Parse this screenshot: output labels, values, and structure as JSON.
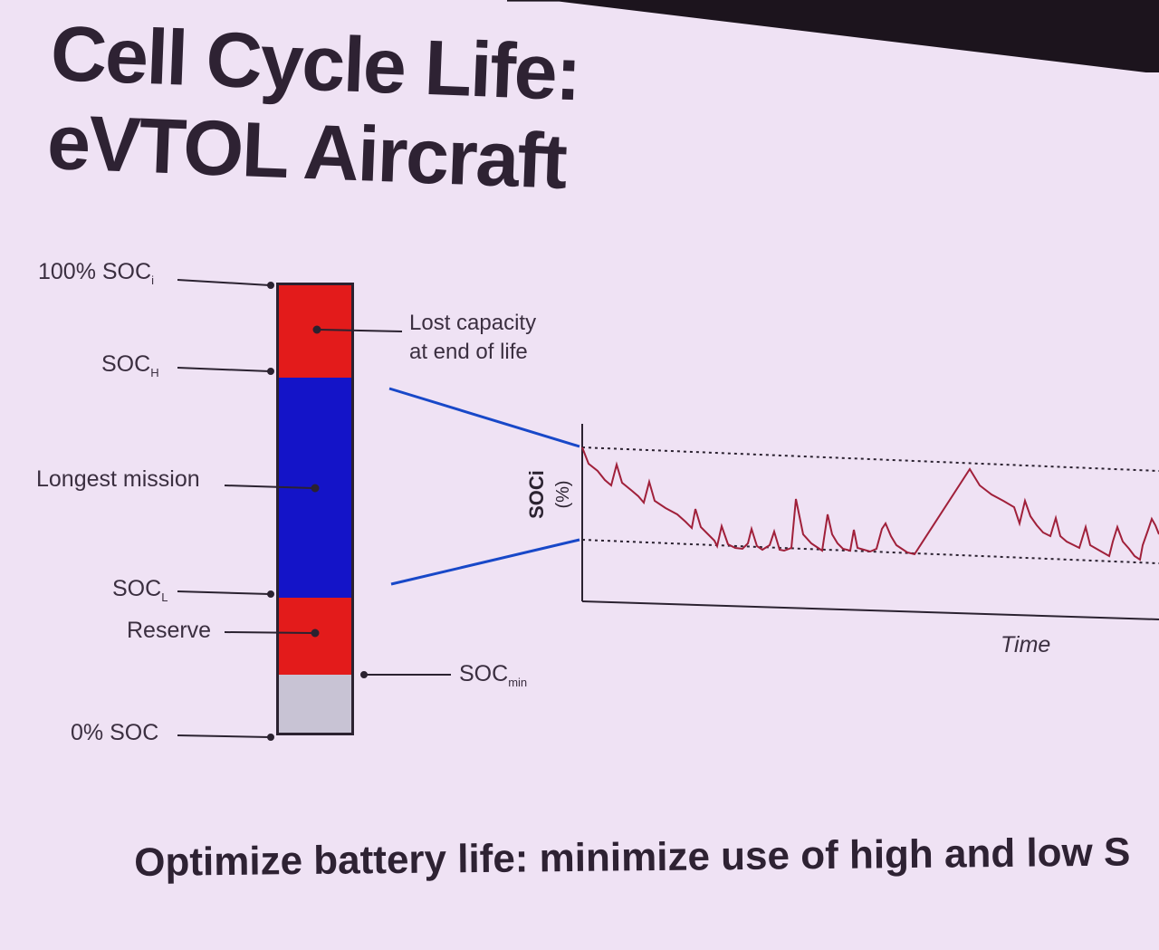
{
  "title": {
    "line1": "Cell Cycle Life:",
    "line2": "eVTOL Aircraft"
  },
  "bar_labels": {
    "soc_100": "100% SOC",
    "soc_100_sub": "i",
    "soc_h": "SOC",
    "soc_h_sub": "H",
    "longest_mission": "Longest mission",
    "soc_l": "SOC",
    "soc_l_sub": "L",
    "reserve": "Reserve",
    "soc_0": "0% SOC",
    "soc_min": "SOC",
    "soc_min_sub": "min"
  },
  "callout": {
    "line1": "Lost capacity",
    "line2": "at end of life"
  },
  "plot": {
    "y_label_line1": "SOCi",
    "y_label_line2": "(%)",
    "x_label": "Time"
  },
  "colors": {
    "red": "#e31b1b",
    "blue": "#1414c8",
    "grey": "#c8c3d4",
    "trace": "#a0203a",
    "zoom_line": "#1848c8"
  },
  "bottom_text": "Optimize battery life: minimize use of high and low S"
}
